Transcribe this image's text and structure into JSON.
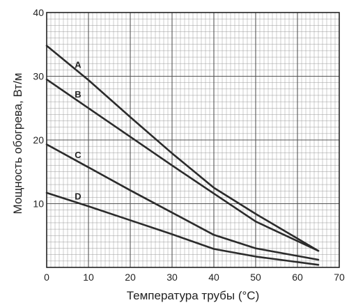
{
  "chart_data": {
    "type": "line",
    "title": "",
    "xlabel": "Температура трубы (°C)",
    "ylabel": "Мощность обогрева, Вт/м",
    "xlim": [
      0,
      70
    ],
    "ylim": [
      0,
      40
    ],
    "xticks": [
      "0",
      "10",
      "20",
      "30",
      "40",
      "50",
      "60",
      "70"
    ],
    "yticks": [
      "10",
      "20",
      "30",
      "40"
    ],
    "grid": true,
    "legend": "inline",
    "colors": {
      "line": "#2b2b2b",
      "grid": "#9a9a9a",
      "frame": "#222222"
    },
    "series": [
      {
        "name": "A",
        "x": [
          0,
          10,
          20,
          30,
          40,
          50,
          65
        ],
        "y": [
          34.8,
          29.4,
          23.6,
          17.9,
          12.5,
          8.4,
          2.6
        ]
      },
      {
        "name": "B",
        "x": [
          0,
          10,
          20,
          30,
          40,
          50,
          65
        ],
        "y": [
          29.5,
          25.0,
          20.5,
          16.0,
          11.6,
          7.2,
          2.6
        ]
      },
      {
        "name": "C",
        "x": [
          0,
          10,
          20,
          30,
          40,
          50,
          65
        ],
        "y": [
          19.3,
          15.7,
          12.1,
          8.6,
          5.1,
          3.0,
          1.2
        ]
      },
      {
        "name": "D",
        "x": [
          0,
          10,
          20,
          30,
          40,
          50,
          65
        ],
        "y": [
          11.7,
          9.6,
          7.4,
          5.2,
          2.9,
          1.7,
          0.4
        ]
      }
    ]
  }
}
